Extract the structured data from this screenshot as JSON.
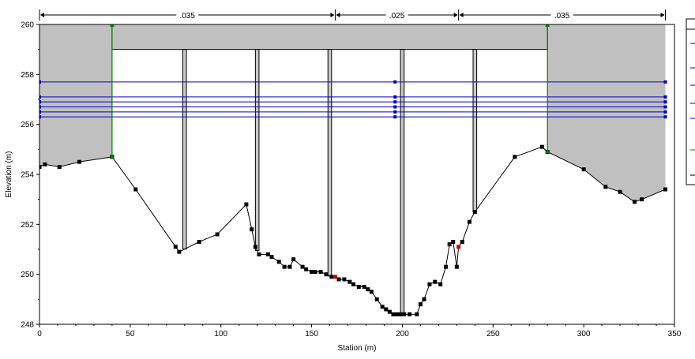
{
  "colors": {
    "ground_fill": "#c0c0c0",
    "ground_line": "#000000",
    "water": "#00ffff",
    "ws_lines": "#0000cc",
    "bank_station": "#008000",
    "pier": "#c8c8c8",
    "deck": "#c0c0c0",
    "ineffective_marker": "#cc0000"
  },
  "chart_data": {
    "type": "area",
    "xlabel": "Station (m)",
    "ylabel": "Elevation (m)",
    "xlim": [
      0,
      350
    ],
    "ylim": [
      248,
      260
    ],
    "x_ticks": [
      "0",
      "50",
      "100",
      "150",
      "200",
      "250",
      "300",
      "350"
    ],
    "y_ticks": [
      "248",
      "250",
      "252",
      "254",
      "256",
      "258",
      "260"
    ],
    "grid": false,
    "legend": "right (clipped)",
    "mannings_n": [
      {
        "label": ".035",
        "from": 0,
        "to": 163
      },
      {
        "label": ".025",
        "from": 163,
        "to": 231
      },
      {
        "label": ".035",
        "from": 231,
        "to": 345
      }
    ],
    "ground": {
      "x": [
        0,
        3,
        11,
        22,
        40,
        53,
        75,
        77,
        88,
        98,
        114,
        117,
        119,
        121,
        126,
        128,
        132,
        135,
        138,
        140,
        145,
        147,
        150,
        152,
        155,
        158,
        161,
        163,
        165,
        168,
        171,
        173,
        176,
        179,
        181,
        183,
        186,
        189,
        191,
        193,
        195,
        197,
        199,
        201,
        204,
        208,
        210,
        212,
        215,
        218,
        221,
        224,
        226,
        228,
        230,
        231,
        233,
        237,
        240,
        262,
        277,
        280,
        300,
        312,
        320,
        328,
        332,
        345
      ],
      "y": [
        254.3,
        254.4,
        254.3,
        254.5,
        254.7,
        253.4,
        251.1,
        250.9,
        251.3,
        251.6,
        252.8,
        251.8,
        251.1,
        250.8,
        250.8,
        250.7,
        250.5,
        250.3,
        250.3,
        250.6,
        250.3,
        250.2,
        250.1,
        250.1,
        250.1,
        250.0,
        249.9,
        249.9,
        249.8,
        249.8,
        249.7,
        249.6,
        249.5,
        249.5,
        249.4,
        249.3,
        249.0,
        248.7,
        248.6,
        248.5,
        248.4,
        248.4,
        248.4,
        248.4,
        248.4,
        248.4,
        248.8,
        249.0,
        249.6,
        249.7,
        249.6,
        250.3,
        251.2,
        251.3,
        250.3,
        251.1,
        251.3,
        252.1,
        252.5,
        254.7,
        255.1,
        254.9,
        254.2,
        253.5,
        253.3,
        252.9,
        253.0,
        253.4
      ]
    },
    "bank_stations": [
      40,
      280
    ],
    "bridge": {
      "high_chord": 260,
      "low_chord": 259,
      "deck_from": 40,
      "deck_to": 280,
      "piers": [
        80,
        120,
        160,
        200,
        240
      ],
      "pier_width": 2
    },
    "water_surfaces": [
      257.7,
      257.1,
      256.9,
      256.7,
      256.5,
      256.3
    ],
    "ws_point_x": [
      0,
      196,
      345
    ]
  }
}
